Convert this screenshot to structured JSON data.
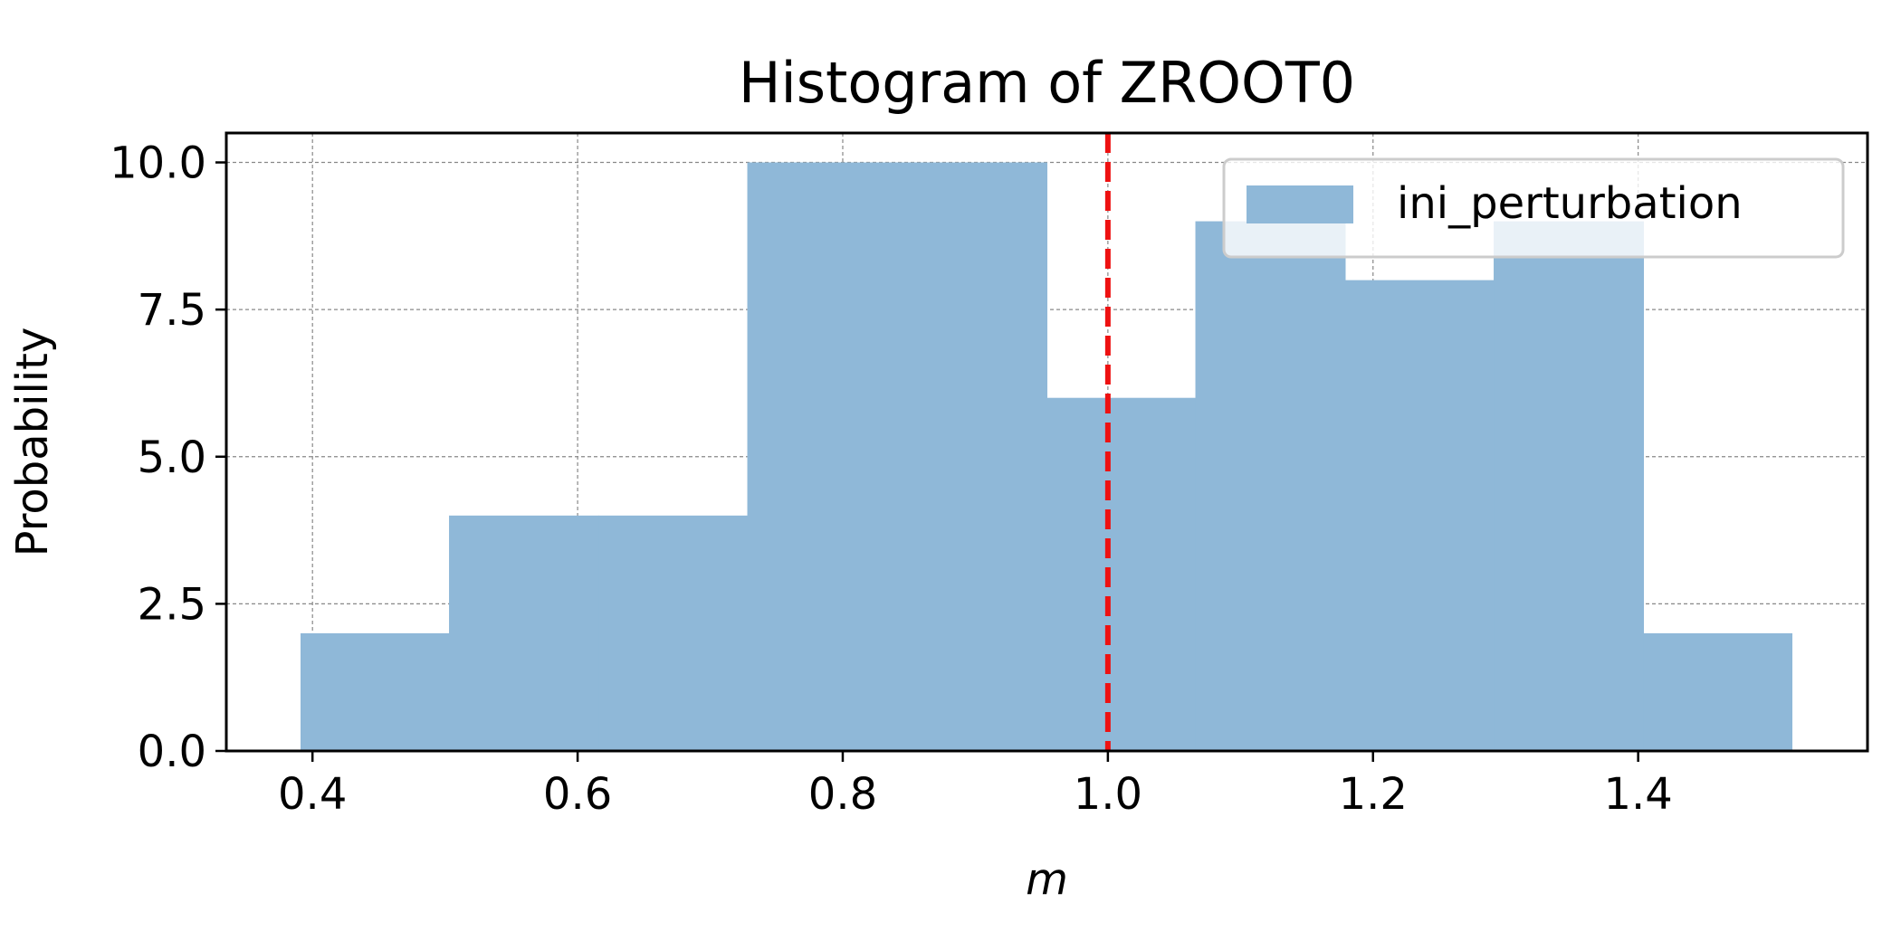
{
  "chart_data": {
    "type": "bar",
    "title": "Histogram of ZROOT0",
    "xlabel": "m",
    "ylabel": "Probability",
    "xlim": [
      0.335,
      1.573
    ],
    "ylim": [
      0,
      10.5
    ],
    "xticks": [
      "0.4",
      "0.6",
      "0.8",
      "1.0",
      "1.2",
      "1.4"
    ],
    "yticks": [
      "0.0",
      "2.5",
      "5.0",
      "7.5",
      "10.0"
    ],
    "grid": true,
    "legend_position": "top-right",
    "bin_edges": [
      0.391,
      0.503,
      0.616,
      0.728,
      0.841,
      0.954,
      1.066,
      1.179,
      1.291,
      1.404,
      1.516
    ],
    "series": [
      {
        "name": "ini_perturbation",
        "values": [
          2,
          4,
          4,
          10,
          10,
          6,
          9,
          8,
          9,
          2
        ],
        "color": "#8fb8d8"
      }
    ],
    "reference_line": {
      "x": 1.0,
      "color": "#ee1111",
      "style": "dashed"
    }
  }
}
